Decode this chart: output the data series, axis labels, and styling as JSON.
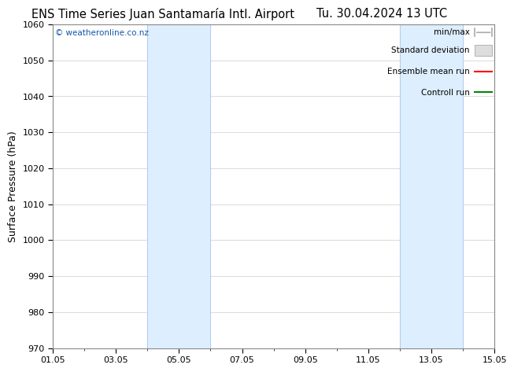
{
  "title_left": "ENS Time Series Juan Santamaría Intl. Airport",
  "title_right": "Tu. 30.04.2024 13 UTC",
  "ylabel": "Surface Pressure (hPa)",
  "ylim": [
    970,
    1060
  ],
  "yticks": [
    970,
    980,
    990,
    1000,
    1010,
    1020,
    1030,
    1040,
    1050,
    1060
  ],
  "xlim": [
    0,
    14
  ],
  "xtick_positions": [
    0,
    2,
    4,
    6,
    8,
    10,
    12,
    14
  ],
  "xtick_labels": [
    "01.05",
    "03.05",
    "05.05",
    "07.05",
    "09.05",
    "11.05",
    "13.05",
    "15.05"
  ],
  "shaded_bands": [
    {
      "xmin": 3.0,
      "xmax": 5.0
    },
    {
      "xmin": 11.0,
      "xmax": 13.0
    }
  ],
  "band_color": "#ddeeff",
  "band_edge_color": "#b0ccee",
  "background_color": "#ffffff",
  "watermark": "© weatheronline.co.nz",
  "watermark_color": "#1155aa",
  "legend_entries": [
    "min/max",
    "Standard deviation",
    "Ensemble mean run",
    "Controll run"
  ],
  "legend_colors": [
    "#aaaaaa",
    "#cccccc",
    "#ff0000",
    "#008800"
  ],
  "grid_color": "#cccccc",
  "title_fontsize": 10.5,
  "axis_fontsize": 9,
  "tick_fontsize": 8
}
